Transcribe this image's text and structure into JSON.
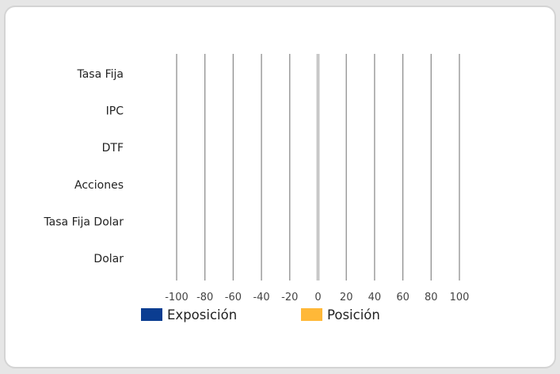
{
  "chart_data": {
    "type": "bar",
    "orientation": "horizontal",
    "categories": [
      "Tasa Fija",
      "IPC",
      "DTF",
      "Acciones",
      "Tasa Fija Dolar",
      "Dolar"
    ],
    "series": [
      {
        "name": "Exposición",
        "color": "#0b3d91",
        "values": [
          0,
          0,
          0,
          0,
          0,
          0
        ]
      },
      {
        "name": "Posición",
        "color": "#ffb838",
        "values": [
          0,
          0,
          0,
          0,
          0,
          0
        ]
      }
    ],
    "x_ticks": [
      "-100",
      "-80",
      "-60",
      "-40",
      "-20",
      "0",
      "20",
      "40",
      "60",
      "80",
      "100"
    ],
    "xlim": [
      -100,
      100
    ],
    "grid": "vertical",
    "legend_position": "bottom"
  }
}
